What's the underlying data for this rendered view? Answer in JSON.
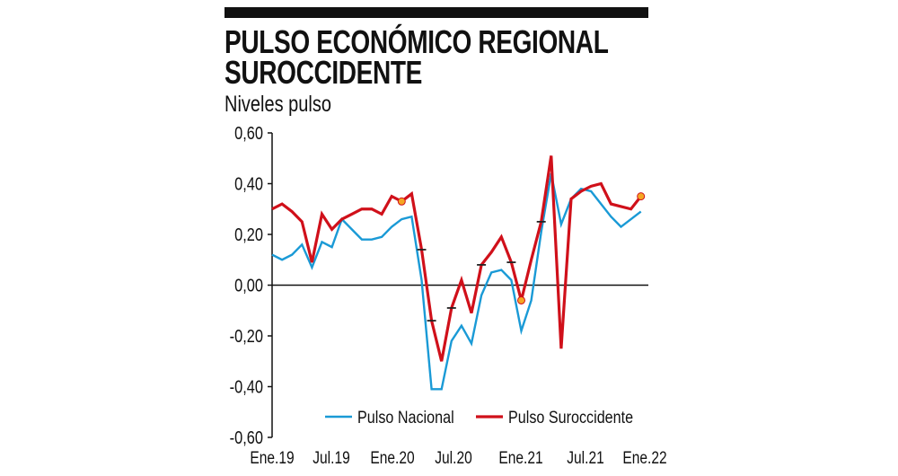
{
  "title_line1": "PULSO ECONÓMICO REGIONAL",
  "title_line2": "SUROCCIDENTE",
  "subtitle": "Niveles pulso",
  "chart_data": {
    "type": "line",
    "ylim": [
      -0.6,
      0.6
    ],
    "y_ticks": [
      0.6,
      0.4,
      0.2,
      0.0,
      -0.2,
      -0.4,
      -0.6
    ],
    "y_tick_labels": [
      "0,60",
      "0,40",
      "0,20",
      "0,00",
      "-0,20",
      "-0,40",
      "-0,60"
    ],
    "x_tick_labels": [
      "Ene.19",
      "Jul.19",
      "Ene.20",
      "Jul.20",
      "Ene.21",
      "Jul.21",
      "Ene.22"
    ],
    "legend_position": "bottom-center",
    "series": [
      {
        "name": "Pulso Nacional",
        "color": "#1a9ad6",
        "values": [
          0.12,
          0.1,
          0.12,
          0.16,
          0.07,
          0.17,
          0.15,
          0.26,
          0.22,
          0.18,
          0.18,
          0.19,
          0.23,
          0.26,
          0.27,
          0.02,
          -0.41,
          -0.41,
          -0.22,
          -0.16,
          -0.23,
          -0.04,
          0.05,
          0.06,
          0.02,
          -0.18,
          -0.06,
          0.21,
          0.44,
          0.24,
          0.34,
          0.38,
          0.37,
          0.32,
          0.27,
          0.23,
          0.26,
          0.29
        ]
      },
      {
        "name": "Pulso Suroccidente",
        "color": "#d0101a",
        "values": [
          0.3,
          0.32,
          0.29,
          0.25,
          0.09,
          0.28,
          0.22,
          0.26,
          0.28,
          0.3,
          0.3,
          0.28,
          0.35,
          0.33,
          0.36,
          0.14,
          -0.14,
          -0.3,
          -0.09,
          0.02,
          -0.11,
          0.08,
          0.13,
          0.19,
          0.09,
          -0.06,
          0.1,
          0.25,
          0.51,
          -0.25,
          0.34,
          0.37,
          0.39,
          0.4,
          0.32,
          0.31,
          0.3,
          0.35
        ],
        "highlighted_points": [
          13,
          25,
          37
        ],
        "tick_marked_points": [
          15,
          16,
          18,
          21,
          24,
          27
        ]
      }
    ],
    "highlight_color": "#f5a623"
  }
}
